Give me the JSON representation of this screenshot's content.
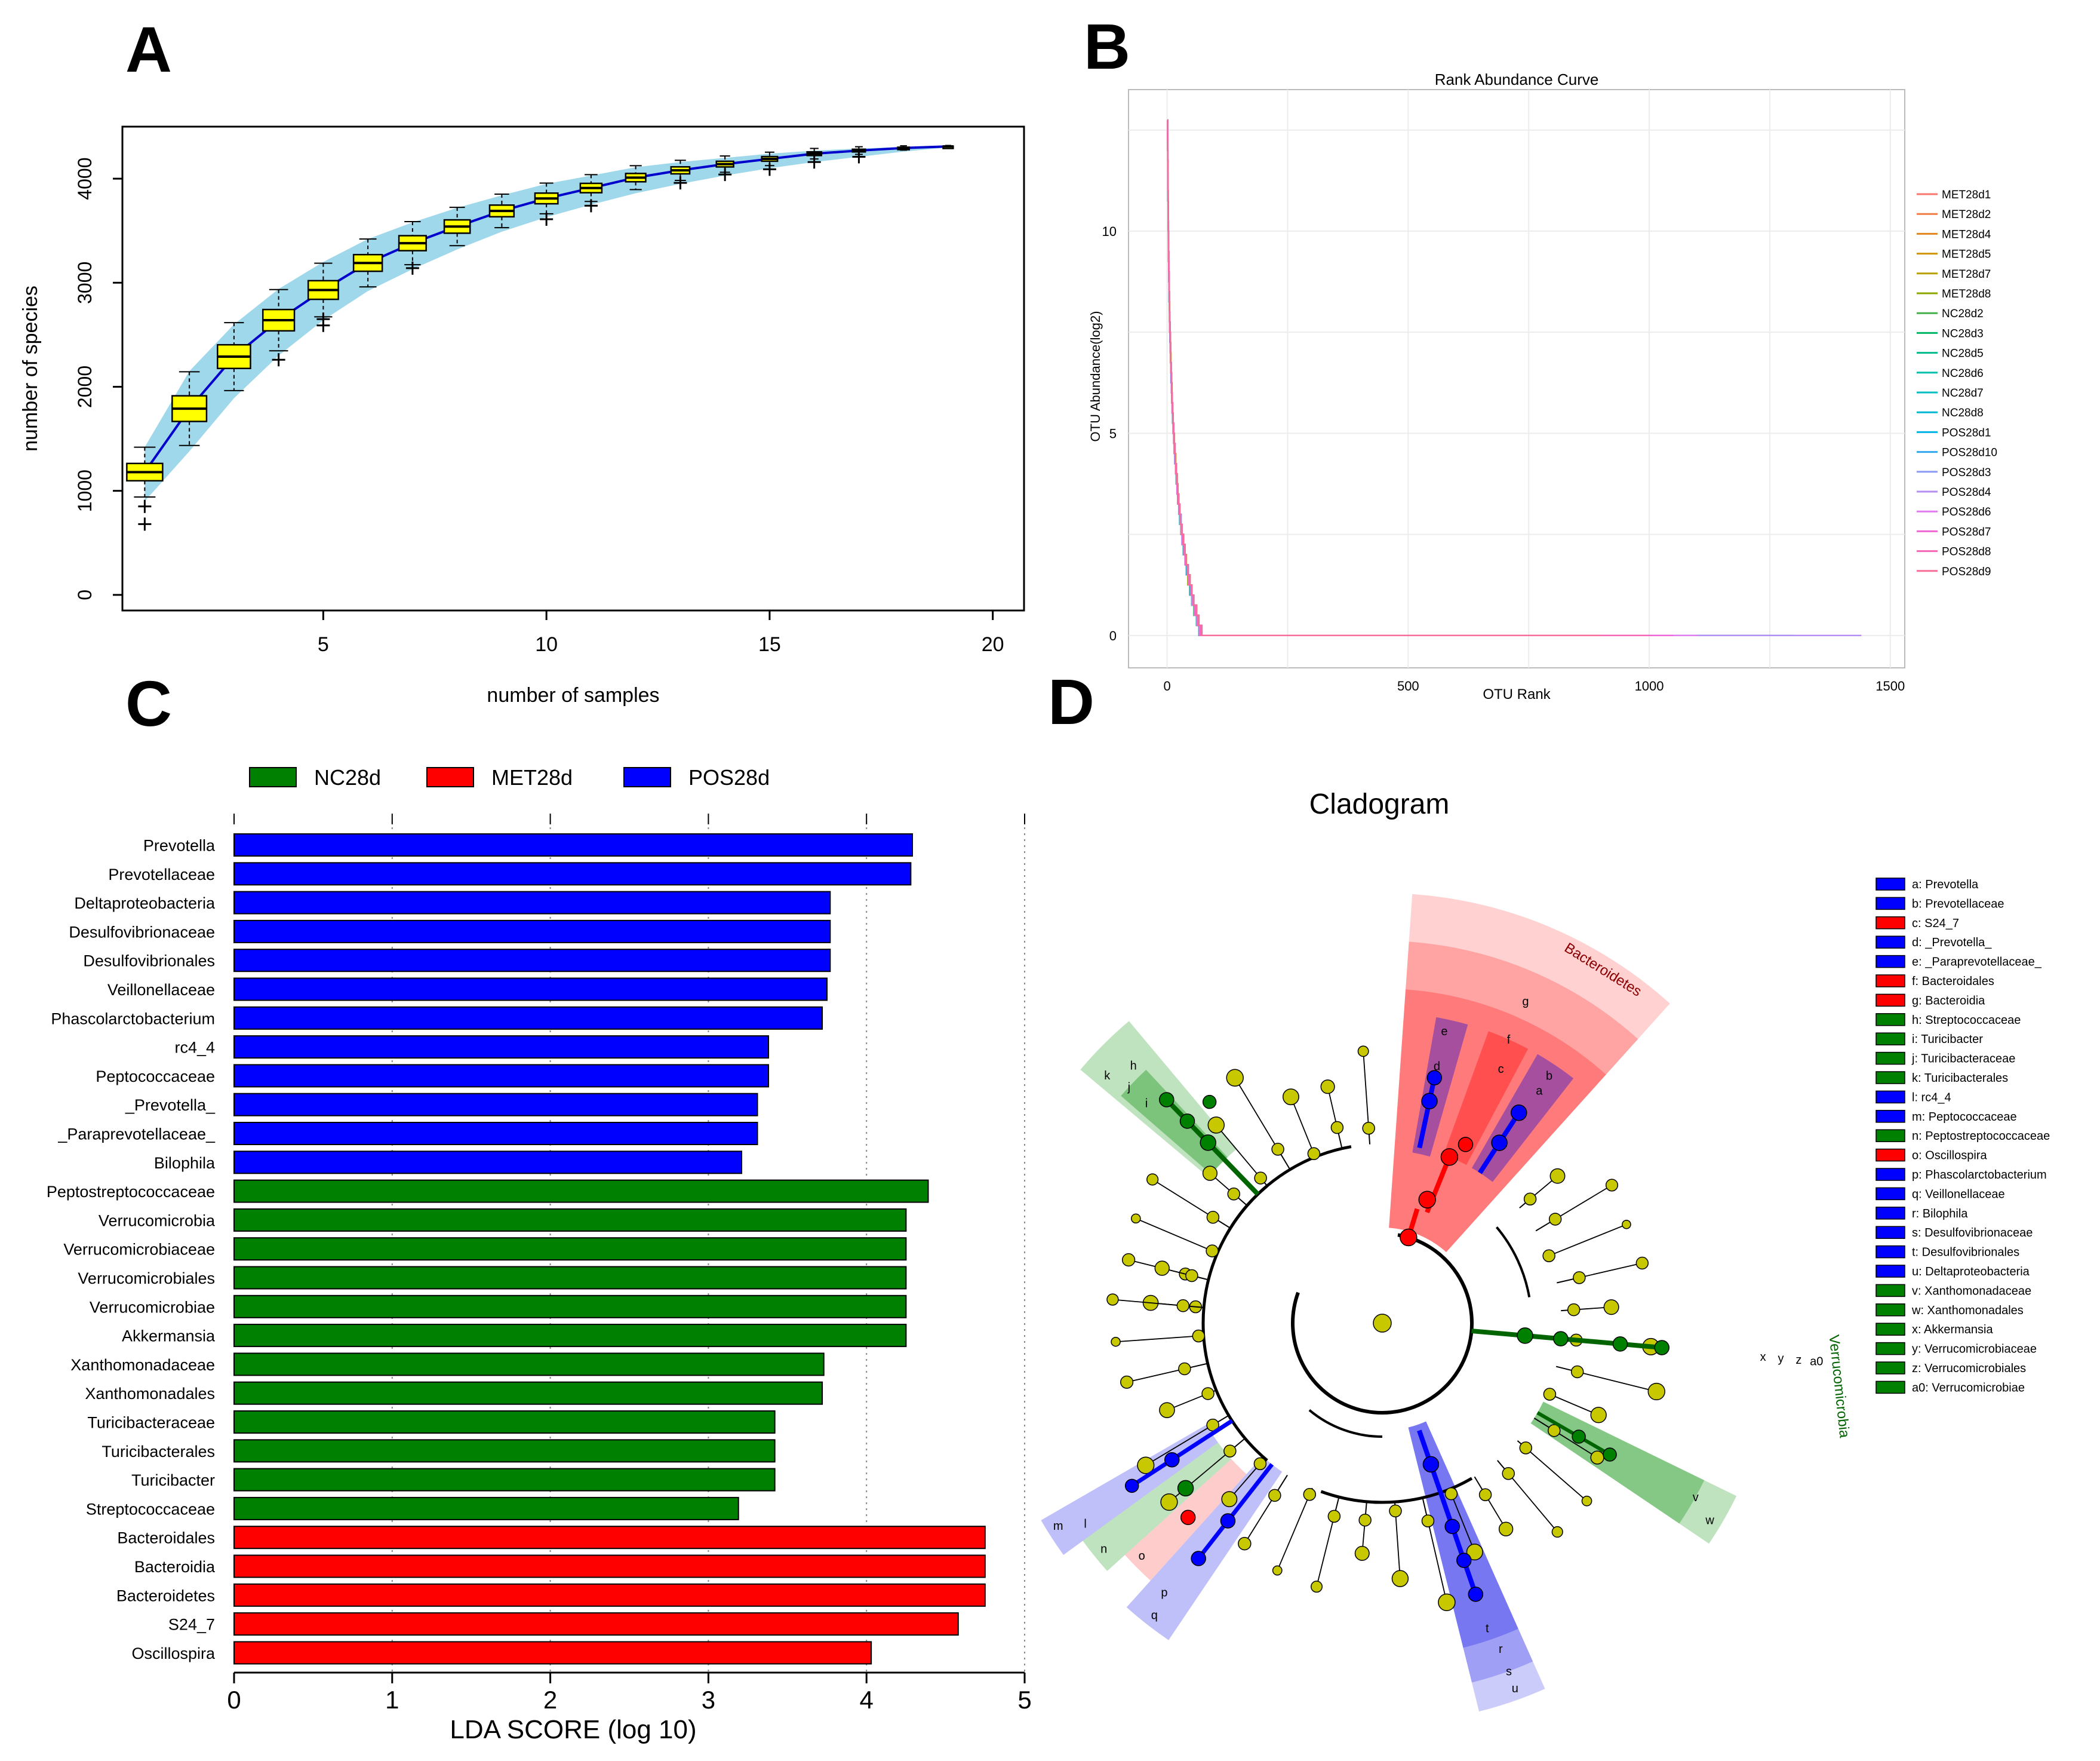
{
  "panels": {
    "A": {
      "letter": "A",
      "chart_data": {
        "type": "boxplot",
        "title": "",
        "xlabel": "number of samples",
        "ylabel": "number of species",
        "xlim": [
          0.5,
          20.7
        ],
        "ylim": [
          -150,
          4500
        ],
        "xticks": [
          "5",
          "10",
          "15",
          "20"
        ],
        "yticks": [
          "0",
          "1000",
          "2000",
          "3000",
          "4000"
        ],
        "median": [
          1180,
          1790,
          2290,
          2640,
          2930,
          3190,
          3380,
          3540,
          3690,
          3810,
          3910,
          4010,
          4080,
          4140,
          4190,
          4240,
          4270,
          4295,
          4310
        ],
        "band_low": [
          900,
          1380,
          1890,
          2300,
          2640,
          2920,
          3130,
          3320,
          3490,
          3630,
          3750,
          3860,
          3950,
          4030,
          4100,
          4160,
          4210,
          4260,
          4300
        ],
        "band_high": [
          1420,
          2150,
          2600,
          2940,
          3200,
          3420,
          3580,
          3720,
          3840,
          3950,
          4030,
          4110,
          4160,
          4200,
          4240,
          4270,
          4290,
          4305,
          4320
        ],
        "outliers": [
          [
            1,
            850
          ],
          [
            1,
            680
          ],
          [
            4,
            2260
          ],
          [
            5,
            2590
          ],
          [
            5,
            2650
          ],
          [
            7,
            3140
          ],
          [
            10,
            3610
          ],
          [
            11,
            3740
          ],
          [
            13,
            3960
          ],
          [
            14,
            4040
          ],
          [
            15,
            4090
          ],
          [
            16,
            4160
          ],
          [
            17,
            4210
          ]
        ]
      }
    },
    "B": {
      "letter": "B",
      "chart_data": {
        "type": "line",
        "title": "Rank Abundance Curve",
        "xlabel": "OTU Rank",
        "ylabel": "OTU Abundance(log2)",
        "xlim": [
          -80,
          1530
        ],
        "ylim": [
          -0.8,
          13.5
        ],
        "xticks": [
          "0",
          "500",
          "1000",
          "1500"
        ],
        "yticks": [
          "0",
          "5",
          "10"
        ],
        "series": [
          {
            "name": "MET28d1",
            "color": "#f8766d",
            "max_rank": 1250
          },
          {
            "name": "MET28d2",
            "color": "#f17c44",
            "max_rank": 1220
          },
          {
            "name": "MET28d4",
            "color": "#e0861c",
            "max_rank": 1180
          },
          {
            "name": "MET28d5",
            "color": "#cf9400",
            "max_rank": 1150
          },
          {
            "name": "MET28d7",
            "color": "#b79f00",
            "max_rank": 1120
          },
          {
            "name": "MET28d8",
            "color": "#8fa600",
            "max_rank": 1090
          },
          {
            "name": "NC28d2",
            "color": "#43b04b",
            "max_rank": 1000
          },
          {
            "name": "NC28d3",
            "color": "#00b664",
            "max_rank": 980
          },
          {
            "name": "NC28d5",
            "color": "#00ba8b",
            "max_rank": 960
          },
          {
            "name": "NC28d6",
            "color": "#00bfaa",
            "max_rank": 900
          },
          {
            "name": "NC28d7",
            "color": "#00bdc4",
            "max_rank": 1300
          },
          {
            "name": "NC28d8",
            "color": "#00b8d4",
            "max_rank": 680
          },
          {
            "name": "POS28d1",
            "color": "#00b3e6",
            "max_rank": 1120
          },
          {
            "name": "POS28d10",
            "color": "#33a8f0",
            "max_rank": 1050
          },
          {
            "name": "POS28d3",
            "color": "#8c9cf4",
            "max_rank": 1000
          },
          {
            "name": "POS28d4",
            "color": "#b58ef4",
            "max_rank": 1440
          },
          {
            "name": "POS28d6",
            "color": "#e07cf0",
            "max_rank": 1100
          },
          {
            "name": "POS28d7",
            "color": "#f066d4",
            "max_rank": 1050
          },
          {
            "name": "POS28d8",
            "color": "#f566b4",
            "max_rank": 1000
          },
          {
            "name": "POS28d9",
            "color": "#f76e98",
            "max_rank": 900
          }
        ]
      }
    },
    "C": {
      "letter": "C",
      "chart_data": {
        "type": "bar",
        "orientation": "horizontal",
        "xlabel": "LDA SCORE (log 10)",
        "xlim": [
          0,
          5
        ],
        "xticks": [
          "0",
          "1",
          "2",
          "3",
          "4",
          "5"
        ],
        "legend": [
          {
            "name": "NC28d",
            "color": "#008000"
          },
          {
            "name": "MET28d",
            "color": "#ff0000"
          },
          {
            "name": "POS28d",
            "color": "#0000ff"
          }
        ],
        "categories": [
          "Prevotella",
          "Prevotellaceae",
          "Deltaproteobacteria",
          "Desulfovibrionaceae",
          "Desulfovibrionales",
          "Veillonellaceae",
          "Phascolarctobacterium",
          "rc4_4",
          "Peptococcaceae",
          "_Prevotella_",
          "_Paraprevotellaceae_",
          "Bilophila",
          "Peptostreptococcaceae",
          "Verrucomicrobia",
          "Verrucomicrobiaceae",
          "Verrucomicrobiales",
          "Verrucomicrobiae",
          "Akkermansia",
          "Xanthomonadaceae",
          "Xanthomonadales",
          "Turicibacteraceae",
          "Turicibacterales",
          "Turicibacter",
          "Streptococcaceae",
          "Bacteroidales",
          "Bacteroidia",
          "Bacteroidetes",
          "S24_7",
          "Oscillospira"
        ],
        "values": [
          4.29,
          4.28,
          3.77,
          3.77,
          3.77,
          3.75,
          3.72,
          3.38,
          3.38,
          3.31,
          3.31,
          3.21,
          4.39,
          4.25,
          4.25,
          4.25,
          4.25,
          4.25,
          3.73,
          3.72,
          3.42,
          3.42,
          3.42,
          3.19,
          4.75,
          4.75,
          4.75,
          4.58,
          4.03
        ],
        "groups": [
          "POS28d",
          "POS28d",
          "POS28d",
          "POS28d",
          "POS28d",
          "POS28d",
          "POS28d",
          "POS28d",
          "POS28d",
          "POS28d",
          "POS28d",
          "POS28d",
          "NC28d",
          "NC28d",
          "NC28d",
          "NC28d",
          "NC28d",
          "NC28d",
          "NC28d",
          "NC28d",
          "NC28d",
          "NC28d",
          "NC28d",
          "NC28d",
          "MET28d",
          "MET28d",
          "MET28d",
          "MET28d",
          "MET28d"
        ]
      }
    },
    "D": {
      "letter": "D",
      "chart_data": {
        "type": "cladogram",
        "title": "Cladogram",
        "sector_labels": [
          "Bacteroidetes",
          "Verrucomicrobia"
        ],
        "clade_letters": [
          "a",
          "b",
          "c",
          "d",
          "e",
          "f",
          "g",
          "h",
          "i",
          "j",
          "k",
          "l",
          "m",
          "n",
          "o",
          "p",
          "q",
          "r",
          "s",
          "t",
          "u",
          "v",
          "w",
          "x",
          "y",
          "z",
          "a0"
        ],
        "legend": [
          {
            "label": "a: Prevotella",
            "color": "#0000ff"
          },
          {
            "label": "b: Prevotellaceae",
            "color": "#0000ff"
          },
          {
            "label": "c: S24_7",
            "color": "#ff0000"
          },
          {
            "label": "d: _Prevotella_",
            "color": "#0000ff"
          },
          {
            "label": "e: _Paraprevotellaceae_",
            "color": "#0000ff"
          },
          {
            "label": "f: Bacteroidales",
            "color": "#ff0000"
          },
          {
            "label": "g: Bacteroidia",
            "color": "#ff0000"
          },
          {
            "label": "h: Streptococcaceae",
            "color": "#008000"
          },
          {
            "label": "i: Turicibacter",
            "color": "#008000"
          },
          {
            "label": "j: Turicibacteraceae",
            "color": "#008000"
          },
          {
            "label": "k: Turicibacterales",
            "color": "#008000"
          },
          {
            "label": "l: rc4_4",
            "color": "#0000ff"
          },
          {
            "label": "m: Peptococcaceae",
            "color": "#0000ff"
          },
          {
            "label": "n: Peptostreptococcaceae",
            "color": "#008000"
          },
          {
            "label": "o: Oscillospira",
            "color": "#ff0000"
          },
          {
            "label": "p: Phascolarctobacterium",
            "color": "#0000ff"
          },
          {
            "label": "q: Veillonellaceae",
            "color": "#0000ff"
          },
          {
            "label": "r: Bilophila",
            "color": "#0000ff"
          },
          {
            "label": "s: Desulfovibrionaceae",
            "color": "#0000ff"
          },
          {
            "label": "t: Desulfovibrionales",
            "color": "#0000ff"
          },
          {
            "label": "u: Deltaproteobacteria",
            "color": "#0000ff"
          },
          {
            "label": "v: Xanthomonadaceae",
            "color": "#008000"
          },
          {
            "label": "w: Xanthomonadales",
            "color": "#008000"
          },
          {
            "label": "x: Akkermansia",
            "color": "#008000"
          },
          {
            "label": "y: Verrucomicrobiaceae",
            "color": "#008000"
          },
          {
            "label": "z: Verrucomicrobiales",
            "color": "#008000"
          },
          {
            "label": "a0: Verrucomicrobiae",
            "color": "#008000"
          }
        ]
      }
    }
  }
}
